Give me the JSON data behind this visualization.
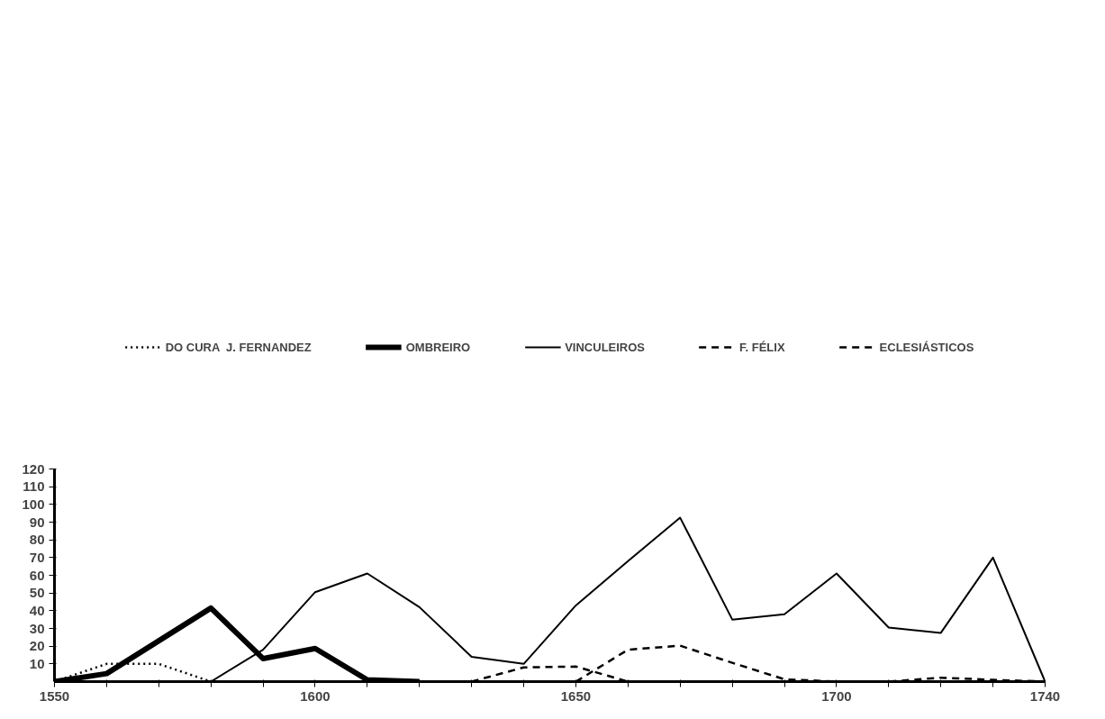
{
  "chart_data": {
    "type": "line",
    "xlim": [
      1550,
      1740
    ],
    "ylim": [
      0,
      120
    ],
    "xticks": [
      1550,
      {
        "value": 1560,
        "label": null
      },
      {
        "value": 1570,
        "label": null
      },
      {
        "value": 1580,
        "label": null
      },
      {
        "value": 1590,
        "label": null
      },
      1600,
      {
        "value": 1610,
        "label": null
      },
      {
        "value": 1620,
        "label": null
      },
      {
        "value": 1630,
        "label": null
      },
      {
        "value": 1640,
        "label": null
      },
      1650,
      {
        "value": 1660,
        "label": null
      },
      {
        "value": 1670,
        "label": null
      },
      {
        "value": 1680,
        "label": null
      },
      {
        "value": 1690,
        "label": null
      },
      1700,
      {
        "value": 1710,
        "label": null
      },
      {
        "value": 1720,
        "label": null
      },
      {
        "value": 1730,
        "label": null
      },
      1740
    ],
    "yticks": [
      10,
      20,
      30,
      40,
      50,
      60,
      70,
      80,
      90,
      100,
      110,
      120
    ],
    "grid": false,
    "legend": "top",
    "marker": "none",
    "series": [
      {
        "name": "DO CURA  J. FERNANDEZ",
        "color": "#000000",
        "line_style": "dotted",
        "x": [
          1550,
          1560,
          1570,
          1580
        ],
        "values": [
          0,
          10,
          10,
          0
        ]
      },
      {
        "name": "OMBREIRO",
        "color": "#000000",
        "line_style": "solid",
        "x": [
          1550,
          1560,
          1580,
          1590,
          1600,
          1610,
          1620
        ],
        "values": [
          0,
          4.5,
          41.5,
          13,
          18.7,
          1,
          0
        ]
      },
      {
        "name": "VINCULEIROS",
        "color": "#000000",
        "line_style": "solid",
        "x": [
          1580,
          1590,
          1600,
          1610,
          1620,
          1630,
          1640,
          1650,
          1660,
          1670,
          1680,
          1690,
          1700,
          1710,
          1720,
          1730,
          1740
        ],
        "values": [
          0,
          18,
          50.5,
          61,
          42,
          14,
          10,
          43,
          68,
          92.5,
          35,
          38,
          61,
          30.5,
          27.5,
          70,
          0
        ]
      },
      {
        "name": "F. FÉLIX",
        "color": "#000000",
        "line_style": "dashed",
        "x": [
          1630,
          1640,
          1650,
          1660
        ],
        "values": [
          0,
          8,
          8.5,
          0
        ]
      },
      {
        "name": "ECLESIÁSTICOS",
        "color": "#000000",
        "line_style": "dashed",
        "x": [
          1650,
          1660,
          1670,
          1680,
          1690,
          1700,
          1710,
          1720,
          1730,
          1740
        ],
        "values": [
          0,
          18,
          20.3,
          10.6,
          1.3,
          0,
          0,
          2.2,
          1,
          0
        ]
      }
    ]
  }
}
